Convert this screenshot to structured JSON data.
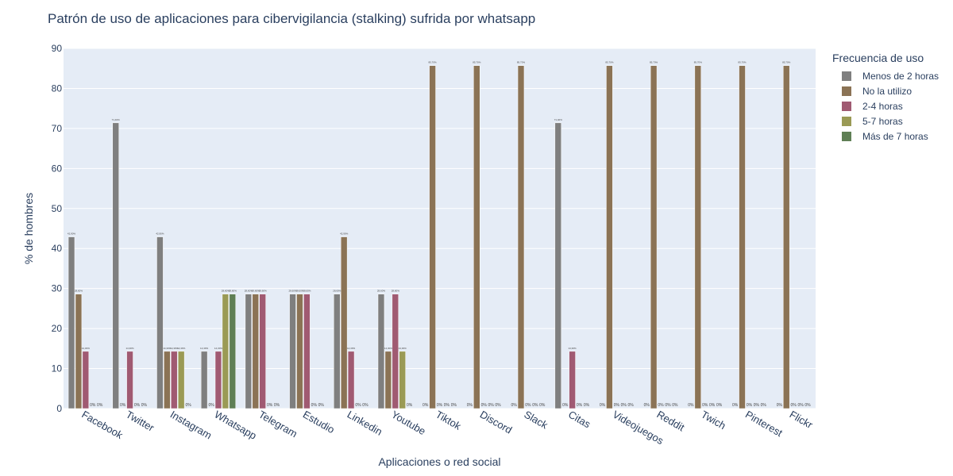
{
  "chart_data": {
    "type": "bar",
    "title": "Patrón de uso de aplicaciones para cibervigilancia (stalking) sufrida por whatsapp",
    "xlabel": "Aplicaciones o red social",
    "ylabel": "% de hombres",
    "ylim": [
      0,
      90
    ],
    "yticks": [
      "0",
      "10",
      "20",
      "30",
      "40",
      "50",
      "60",
      "70",
      "80",
      "90"
    ],
    "grid": true,
    "legend_title": "Frecuencia de uso",
    "legend_position": "right",
    "categories": [
      "Facebook",
      "Twitter",
      "Instagram",
      "Whatsapp",
      "Telegram",
      "Estudio",
      "Linkedin",
      "Youtube",
      "Tiktok",
      "Discord",
      "Slack",
      "Citas",
      "Videojuegos",
      "Reddit",
      "Twich",
      "Pinterest",
      "Flickr"
    ],
    "series": [
      {
        "name": "Menos de 2 horas",
        "color": "#7f7f7f",
        "values": [
          42.9,
          71.4,
          42.9,
          14.3,
          28.6,
          28.6,
          28.6,
          28.6,
          0,
          0,
          0,
          71.4,
          0,
          0,
          0,
          0,
          0
        ]
      },
      {
        "name": "No la utilizo",
        "color": "#8b7355",
        "values": [
          28.6,
          0,
          14.3,
          0,
          28.6,
          28.6,
          42.9,
          14.3,
          85.7,
          85.7,
          85.7,
          0,
          85.7,
          85.7,
          85.7,
          85.7,
          85.7
        ]
      },
      {
        "name": "2-4 horas",
        "color": "#a05a72",
        "values": [
          14.3,
          14.3,
          14.3,
          14.3,
          28.6,
          28.6,
          14.3,
          28.6,
          0,
          0,
          0,
          14.3,
          0,
          0,
          0,
          0,
          0
        ]
      },
      {
        "name": "5-7 horas",
        "color": "#9a9a55",
        "values": [
          0,
          0,
          14.3,
          28.6,
          0,
          0,
          0,
          14.3,
          0,
          0,
          0,
          0,
          0,
          0,
          0,
          0,
          0
        ]
      },
      {
        "name": "Más de 7 horas",
        "color": "#5f7f55",
        "values": [
          0,
          0,
          0,
          28.6,
          0,
          0,
          0,
          0,
          0,
          0,
          0,
          0,
          0,
          0,
          0,
          0,
          0
        ]
      }
    ],
    "plot_bg": "#e5ecf6",
    "grid_color": "#ffffff"
  }
}
